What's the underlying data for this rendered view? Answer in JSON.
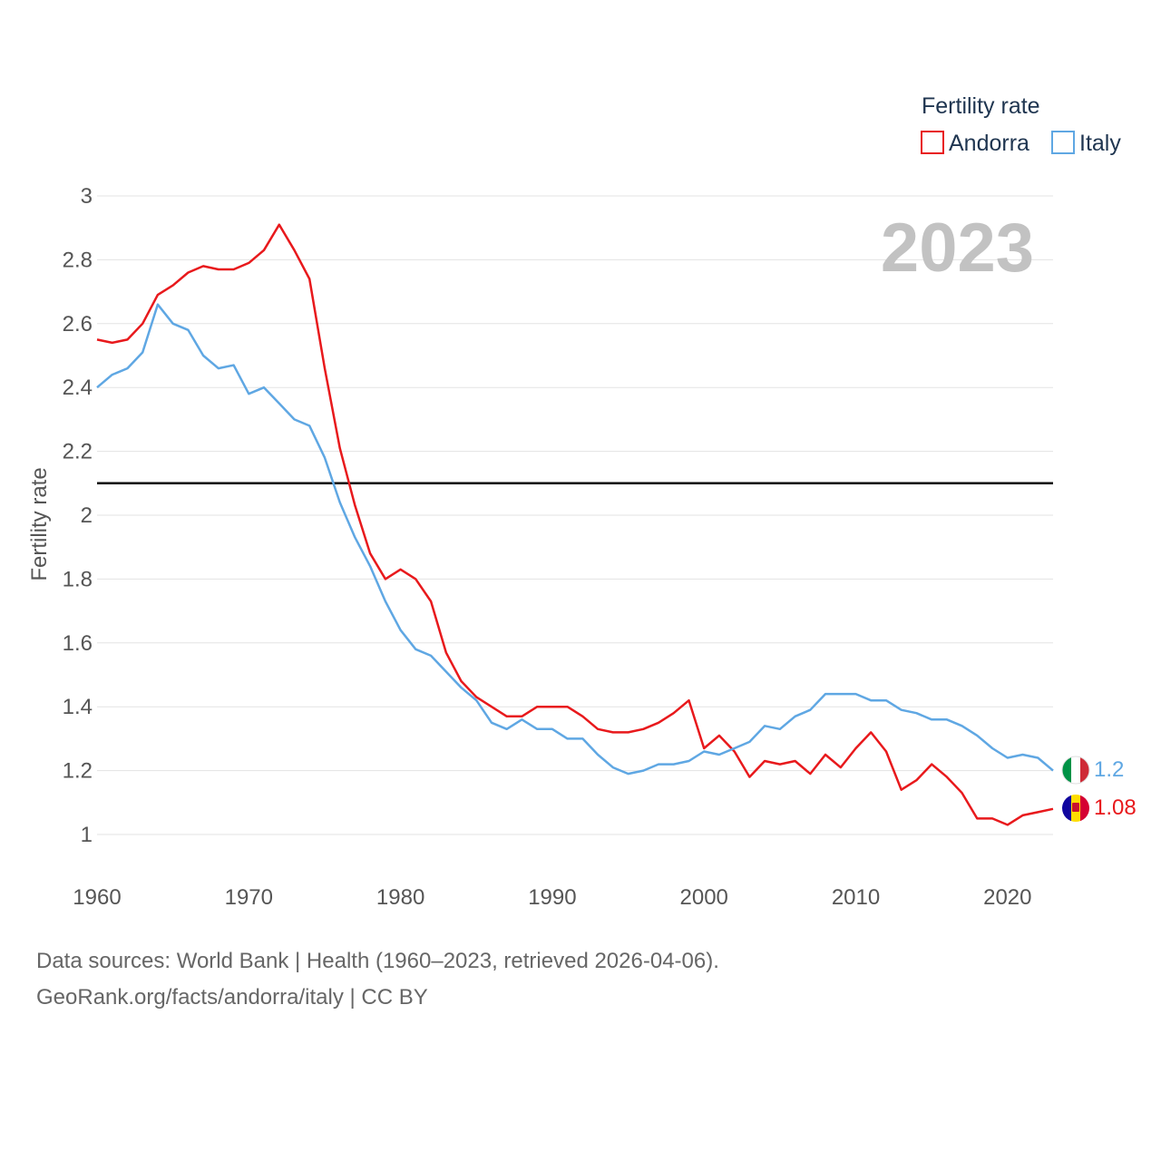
{
  "chart_data": {
    "type": "line",
    "year_label": "2023",
    "ylabel": "Fertility rate",
    "xlabel": "",
    "xlim": [
      1960,
      2023
    ],
    "ylim": [
      0.9,
      3.0
    ],
    "y_ticks": [
      1,
      1.2,
      1.4,
      1.6,
      1.8,
      2,
      2.2,
      2.4,
      2.6,
      2.8,
      3
    ],
    "x_ticks": [
      1960,
      1970,
      1980,
      1990,
      2000,
      2010,
      2020
    ],
    "reference_line": 2.1,
    "legend": {
      "title": "Fertility rate",
      "position": "top-right",
      "entries": [
        "Andorra",
        "Italy"
      ]
    },
    "x": [
      1960,
      1961,
      1962,
      1963,
      1964,
      1965,
      1966,
      1967,
      1968,
      1969,
      1970,
      1971,
      1972,
      1973,
      1974,
      1975,
      1976,
      1977,
      1978,
      1979,
      1980,
      1981,
      1982,
      1983,
      1984,
      1985,
      1986,
      1987,
      1988,
      1989,
      1990,
      1991,
      1992,
      1993,
      1994,
      1995,
      1996,
      1997,
      1998,
      1999,
      2000,
      2001,
      2002,
      2003,
      2004,
      2005,
      2006,
      2007,
      2008,
      2009,
      2010,
      2011,
      2012,
      2013,
      2014,
      2015,
      2016,
      2017,
      2018,
      2019,
      2020,
      2021,
      2022,
      2023
    ],
    "series": [
      {
        "name": "Andorra",
        "color": "#e8191c",
        "end_label": "1.08",
        "values": [
          2.55,
          2.54,
          2.55,
          2.6,
          2.69,
          2.72,
          2.76,
          2.78,
          2.77,
          2.77,
          2.79,
          2.83,
          2.91,
          2.83,
          2.74,
          2.46,
          2.21,
          2.03,
          1.88,
          1.8,
          1.83,
          1.8,
          1.73,
          1.57,
          1.48,
          1.43,
          1.4,
          1.37,
          1.37,
          1.4,
          1.4,
          1.4,
          1.37,
          1.33,
          1.32,
          1.32,
          1.33,
          1.35,
          1.38,
          1.42,
          1.27,
          1.31,
          1.26,
          1.18,
          1.23,
          1.22,
          1.23,
          1.19,
          1.25,
          1.21,
          1.27,
          1.32,
          1.26,
          1.14,
          1.17,
          1.22,
          1.18,
          1.13,
          1.05,
          1.05,
          1.03,
          1.06,
          1.07,
          1.08
        ]
      },
      {
        "name": "Italy",
        "color": "#5fa7e3",
        "end_label": "1.2",
        "values": [
          2.4,
          2.44,
          2.46,
          2.51,
          2.66,
          2.6,
          2.58,
          2.5,
          2.46,
          2.47,
          2.38,
          2.4,
          2.35,
          2.3,
          2.28,
          2.18,
          2.04,
          1.93,
          1.84,
          1.73,
          1.64,
          1.58,
          1.56,
          1.51,
          1.46,
          1.42,
          1.35,
          1.33,
          1.36,
          1.33,
          1.33,
          1.3,
          1.3,
          1.25,
          1.21,
          1.19,
          1.2,
          1.22,
          1.22,
          1.23,
          1.26,
          1.25,
          1.27,
          1.29,
          1.34,
          1.33,
          1.37,
          1.39,
          1.44,
          1.44,
          1.44,
          1.42,
          1.42,
          1.39,
          1.38,
          1.36,
          1.36,
          1.34,
          1.31,
          1.27,
          1.24,
          1.25,
          1.24,
          1.2
        ]
      }
    ]
  },
  "footer": {
    "source_line_1": "Data sources: World Bank | Health (1960–2023, retrieved 2026-04-06).",
    "source_line_2": "GeoRank.org/facts/andorra/italy | CC BY"
  }
}
